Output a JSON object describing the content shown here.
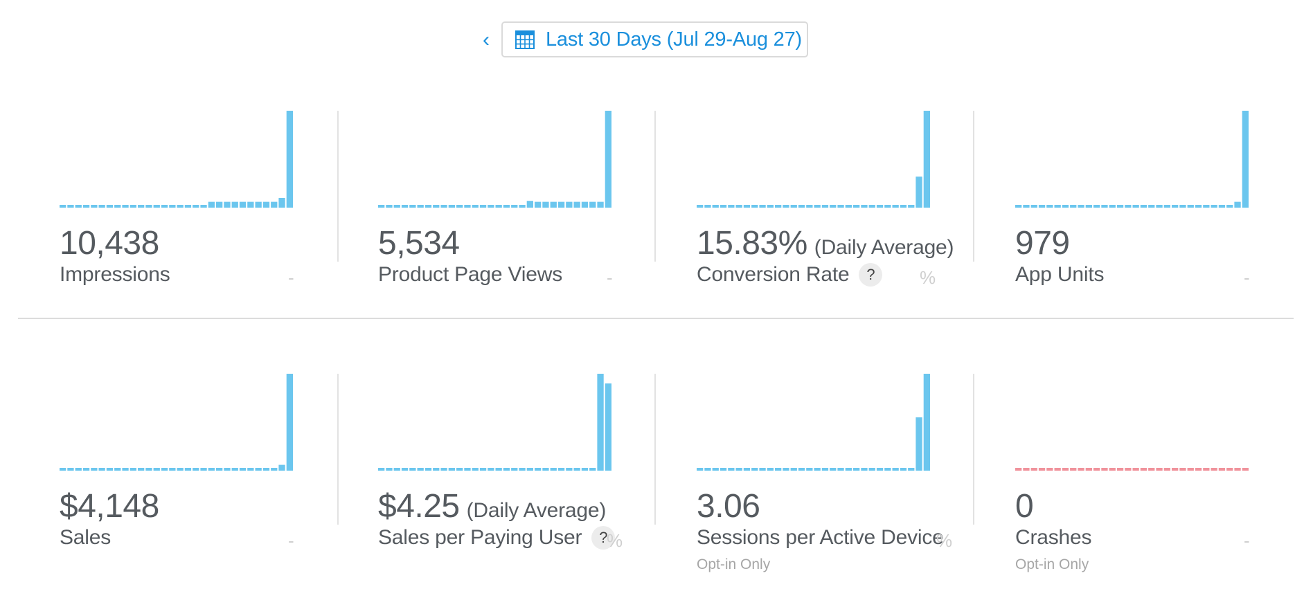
{
  "date_range": {
    "label": "Last 30 Days (Jul 29-Aug 27)"
  },
  "colors": {
    "accent": "#1a8fdc",
    "bar": "#6bc6ee",
    "crash": "#f0929b",
    "text": "#555a5f"
  },
  "icons": {
    "back": "chevron-left-icon",
    "calendar": "calendar-icon",
    "help": "question-icon"
  },
  "metrics": [
    {
      "id": "impressions",
      "value": "10,438",
      "suffix": "",
      "label": "Impressions",
      "help": "",
      "change": "-",
      "note": "",
      "chart_data": {
        "type": "bar",
        "baseline_days": 30,
        "ylim": [
          0,
          1
        ],
        "values": [
          0,
          0,
          0,
          0,
          0,
          0,
          0,
          0,
          0,
          0,
          0,
          0,
          0,
          0,
          0,
          0,
          0,
          0,
          0,
          0.06,
          0.06,
          0.06,
          0.06,
          0.06,
          0.06,
          0.06,
          0.06,
          0.06,
          0.1,
          1.0
        ]
      }
    },
    {
      "id": "product-page-views",
      "value": "5,534",
      "suffix": "",
      "label": "Product Page Views",
      "help": "",
      "change": "-",
      "note": "",
      "chart_data": {
        "type": "bar",
        "baseline_days": 30,
        "ylim": [
          0,
          1
        ],
        "values": [
          0,
          0,
          0,
          0,
          0,
          0,
          0,
          0,
          0,
          0,
          0,
          0,
          0,
          0,
          0,
          0,
          0,
          0,
          0,
          0.07,
          0.06,
          0.06,
          0.06,
          0.06,
          0.06,
          0.06,
          0.06,
          0.06,
          0.06,
          1.0
        ]
      }
    },
    {
      "id": "conversion-rate",
      "value": "15.83%",
      "suffix": "(Daily Average)",
      "label": "Conversion Rate",
      "help": "?",
      "change": "%",
      "note": "",
      "chart_data": {
        "type": "bar",
        "baseline_days": 30,
        "ylim": [
          0,
          1
        ],
        "values": [
          0,
          0,
          0,
          0,
          0,
          0,
          0,
          0,
          0,
          0,
          0,
          0,
          0,
          0,
          0,
          0,
          0,
          0,
          0,
          0,
          0,
          0,
          0,
          0,
          0,
          0,
          0,
          0,
          0.32,
          1.0
        ]
      }
    },
    {
      "id": "app-units",
      "value": "979",
      "suffix": "",
      "label": "App Units",
      "help": "",
      "change": "-",
      "note": "",
      "chart_data": {
        "type": "bar",
        "baseline_days": 30,
        "ylim": [
          0,
          1
        ],
        "values": [
          0,
          0,
          0,
          0,
          0,
          0,
          0,
          0,
          0,
          0,
          0,
          0,
          0,
          0,
          0,
          0,
          0,
          0,
          0,
          0,
          0,
          0,
          0,
          0,
          0,
          0,
          0,
          0,
          0.06,
          1.0
        ]
      }
    },
    {
      "id": "sales",
      "value": "$4,148",
      "suffix": "",
      "label": "Sales",
      "help": "",
      "change": "-",
      "note": "",
      "chart_data": {
        "type": "bar",
        "baseline_days": 30,
        "ylim": [
          0,
          1
        ],
        "values": [
          0,
          0,
          0,
          0,
          0,
          0,
          0,
          0,
          0,
          0,
          0,
          0,
          0,
          0,
          0,
          0,
          0,
          0,
          0,
          0,
          0,
          0,
          0,
          0,
          0,
          0,
          0,
          0,
          0.06,
          1.0
        ]
      }
    },
    {
      "id": "sales-per-paying-user",
      "value": "$4.25",
      "suffix": "(Daily Average)",
      "label": "Sales per Paying User",
      "help": "?",
      "change": "%",
      "note": "",
      "chart_data": {
        "type": "bar",
        "baseline_days": 30,
        "ylim": [
          0,
          1
        ],
        "values": [
          0,
          0,
          0,
          0,
          0,
          0,
          0,
          0,
          0,
          0,
          0,
          0,
          0,
          0,
          0,
          0,
          0,
          0,
          0,
          0,
          0,
          0,
          0,
          0,
          0,
          0,
          0,
          0,
          1.0,
          0.9
        ]
      }
    },
    {
      "id": "sessions-per-active-device",
      "value": "3.06",
      "suffix": "",
      "label": "Sessions per Active Device",
      "help": "",
      "change": "%",
      "note": "Opt-in Only",
      "chart_data": {
        "type": "bar",
        "baseline_days": 30,
        "ylim": [
          0,
          1
        ],
        "values": [
          0,
          0,
          0,
          0,
          0,
          0,
          0,
          0,
          0,
          0,
          0,
          0,
          0,
          0,
          0,
          0,
          0,
          0,
          0,
          0,
          0,
          0,
          0,
          0,
          0,
          0,
          0,
          0,
          0.55,
          1.0
        ]
      }
    },
    {
      "id": "crashes",
      "value": "0",
      "suffix": "",
      "label": "Crashes",
      "help": "",
      "change": "-",
      "note": "Opt-in Only",
      "chart_data": {
        "type": "bar",
        "baseline_days": 30,
        "ylim": [
          0,
          1
        ],
        "color": "crash",
        "values": [
          0,
          0,
          0,
          0,
          0,
          0,
          0,
          0,
          0,
          0,
          0,
          0,
          0,
          0,
          0,
          0,
          0,
          0,
          0,
          0,
          0,
          0,
          0,
          0,
          0,
          0,
          0,
          0,
          0,
          0
        ]
      }
    }
  ]
}
